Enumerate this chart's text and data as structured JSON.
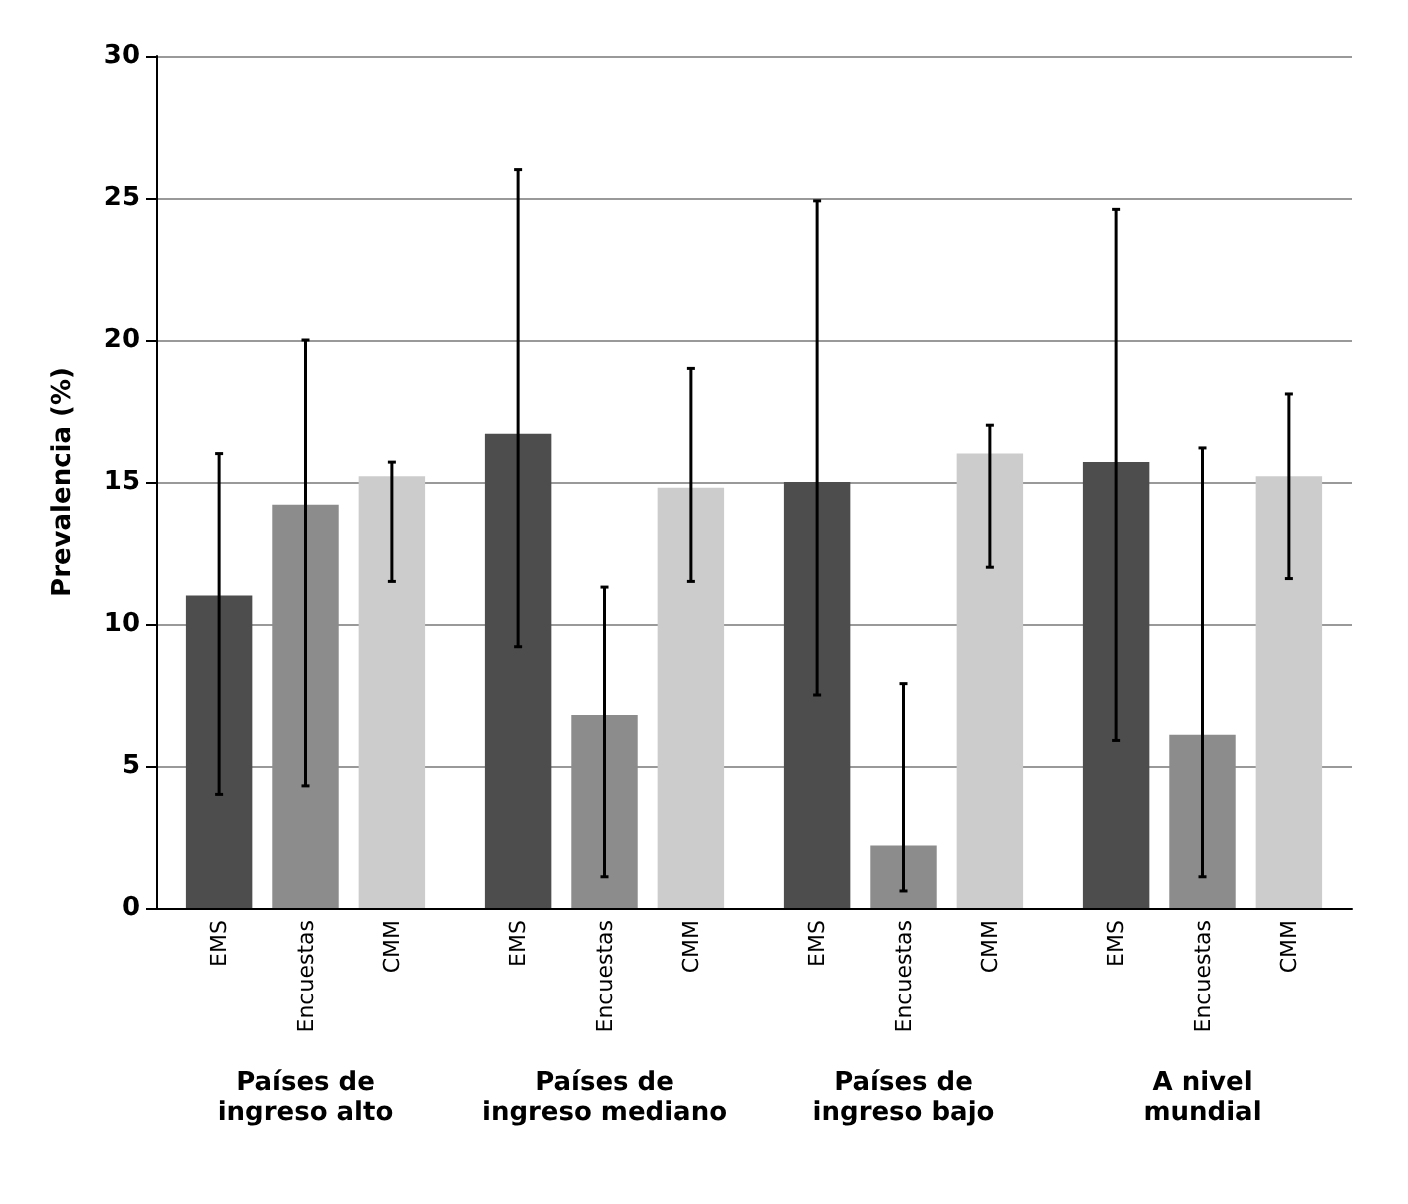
{
  "chart_data": {
    "type": "bar",
    "ylabel": "Prevalencia (%)",
    "categories": [
      "Países de\ningreso alto",
      "Países de\ningreso mediano",
      "Países de\ningreso bajo",
      "A nivel\nmundial"
    ],
    "series": [
      {
        "name": "EMS",
        "color": "#4d4d4d",
        "values": [
          11,
          16.7,
          15,
          15.7
        ],
        "errors": [
          [
            4,
            16
          ],
          [
            9.2,
            26
          ],
          [
            7.5,
            24.9
          ],
          [
            5.9,
            24.6
          ]
        ]
      },
      {
        "name": "Encuestas",
        "color": "#8c8c8c",
        "values": [
          14.2,
          6.8,
          2.2,
          6.1
        ],
        "errors": [
          [
            4.3,
            20
          ],
          [
            1.1,
            11.3
          ],
          [
            0.6,
            7.9
          ],
          [
            1.1,
            16.2
          ]
        ]
      },
      {
        "name": "CMM",
        "color": "#cccccc",
        "values": [
          15.2,
          14.8,
          16,
          15.2
        ],
        "errors": [
          [
            11.5,
            15.7
          ],
          [
            11.5,
            19
          ],
          [
            12,
            17
          ],
          [
            11.6,
            18.1
          ]
        ]
      }
    ],
    "ylim": [
      0,
      30
    ],
    "yticks": [
      0,
      5,
      10,
      15,
      20,
      25,
      30
    ],
    "grid": "y",
    "legend": false
  }
}
